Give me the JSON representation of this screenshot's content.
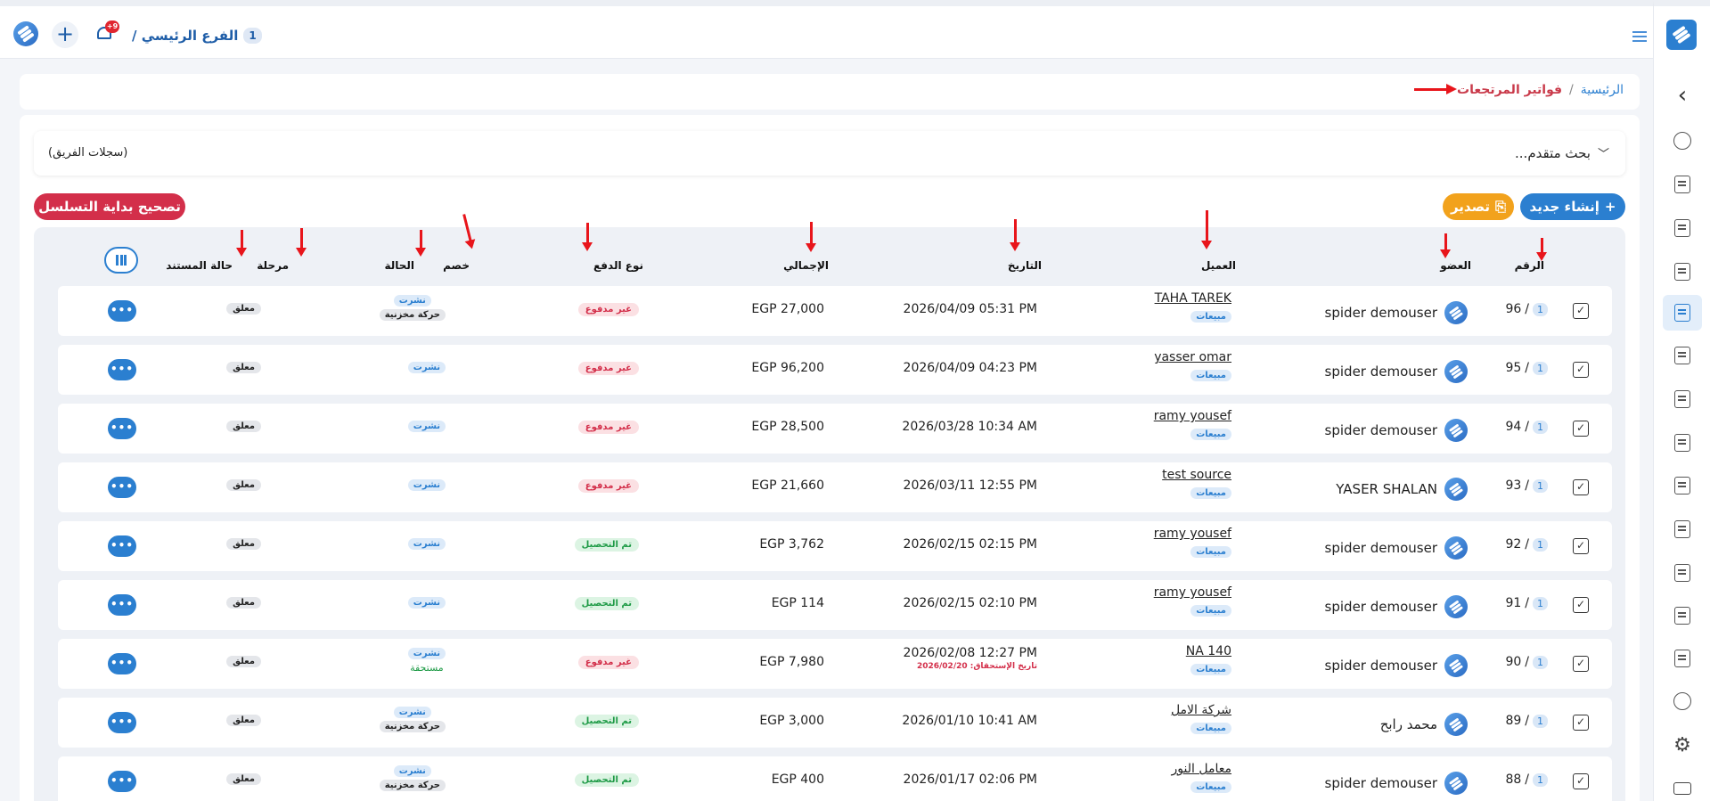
{
  "topbar": {
    "branch_label": "الفرع الرئيسي /",
    "branch_number": "1",
    "notification_count": "+9"
  },
  "breadcrumb": {
    "home": "الرئيسية",
    "separator": "/",
    "current": "فواتير المرتجعات"
  },
  "search": {
    "advanced_label": "بحث متقدم...",
    "team_records": "(سجلات الفريق)"
  },
  "actions": {
    "create_new": "إنشاء جديد",
    "export": "تصدير",
    "fix_sequence": "تصحيح بداية التسلسل"
  },
  "table": {
    "headers": {
      "number": "الرقم",
      "member": "العضو",
      "client": "العميل",
      "date": "التاريخ",
      "total": "الإجمالي",
      "payment_type": "نوع الدفع",
      "discount": "خصم",
      "status": "الحالة",
      "stage": "مرحلة",
      "doc_status": "حالة المستند"
    },
    "rows": [
      {
        "number": "96",
        "branch": "1",
        "member": "spider demouser",
        "client": "TAHA TAREK",
        "client_tag": "مبيعات",
        "date": "2026/04/09 05:31 PM",
        "due": "",
        "total": "EGP 27,000",
        "payment": "غير مدفوع",
        "paid": false,
        "status": [
          "نشرت",
          "حركة مخزنية"
        ],
        "doc_status": "معلق",
        "more": "•••"
      },
      {
        "number": "95",
        "branch": "1",
        "member": "spider demouser",
        "client": "yasser omar",
        "client_tag": "مبيعات",
        "date": "2026/04/09 04:23 PM",
        "due": "",
        "total": "EGP 96,200",
        "payment": "غير مدفوع",
        "paid": false,
        "status": [
          "نشرت"
        ],
        "doc_status": "معلق",
        "more": "•••"
      },
      {
        "number": "94",
        "branch": "1",
        "member": "spider demouser",
        "client": "ramy yousef",
        "client_tag": "مبيعات",
        "date": "2026/03/28 10:34 AM",
        "due": "",
        "total": "EGP 28,500",
        "payment": "غير مدفوع",
        "paid": false,
        "status": [
          "نشرت"
        ],
        "doc_status": "معلق",
        "more": "•••"
      },
      {
        "number": "93",
        "branch": "1",
        "member": "YASER SHALAN",
        "client": "test source",
        "client_tag": "مبيعات",
        "date": "2026/03/11 12:55 PM",
        "due": "",
        "total": "EGP 21,660",
        "payment": "غير مدفوع",
        "paid": false,
        "status": [
          "نشرت"
        ],
        "doc_status": "معلق",
        "more": "•••"
      },
      {
        "number": "92",
        "branch": "1",
        "member": "spider demouser",
        "client": "ramy yousef",
        "client_tag": "مبيعات",
        "date": "2026/02/15 02:15 PM",
        "due": "",
        "total": "EGP 3,762",
        "payment": "تم التحصيل",
        "paid": true,
        "status": [
          "نشرت"
        ],
        "doc_status": "معلق",
        "more": "•••"
      },
      {
        "number": "91",
        "branch": "1",
        "member": "spider demouser",
        "client": "ramy yousef",
        "client_tag": "مبيعات",
        "date": "2026/02/15 02:10 PM",
        "due": "",
        "total": "EGP 114",
        "payment": "تم التحصيل",
        "paid": true,
        "status": [
          "نشرت"
        ],
        "doc_status": "معلق",
        "more": "•••"
      },
      {
        "number": "90",
        "branch": "1",
        "member": "spider demouser",
        "client": "NA 140",
        "client_tag": "مبيعات",
        "date": "2026/02/08 12:27 PM",
        "due": "تاريخ الإستحقاق: 2026/02/20",
        "total": "EGP 7,980",
        "payment": "غير مدفوع",
        "paid": false,
        "status": [
          "نشرت",
          "مستحقة"
        ],
        "doc_status": "معلق",
        "more": "•••"
      },
      {
        "number": "89",
        "branch": "1",
        "member": "محمد رابح",
        "client": "شركة الامل",
        "client_tag": "مبيعات",
        "date": "2026/01/10 10:41 AM",
        "due": "",
        "total": "EGP 3,000",
        "payment": "تم التحصيل",
        "paid": true,
        "status": [
          "نشرت",
          "حركة مخزنية"
        ],
        "doc_status": "معلق",
        "more": "•••"
      },
      {
        "number": "88",
        "branch": "1",
        "member": "spider demouser",
        "client": "معامل النور",
        "client_tag": "مبيعات",
        "date": "2026/01/17 02:06 PM",
        "due": "",
        "total": "EGP 400",
        "payment": "تم التحصيل",
        "paid": true,
        "status": [
          "نشرت",
          "حركة مخزنية"
        ],
        "doc_status": "معلق",
        "more": "•••"
      }
    ]
  },
  "colors": {
    "primary": "#2b7fd0",
    "warning": "#f2a21c",
    "danger": "#d32f4a",
    "annotation_arrow": "#e8151b"
  }
}
